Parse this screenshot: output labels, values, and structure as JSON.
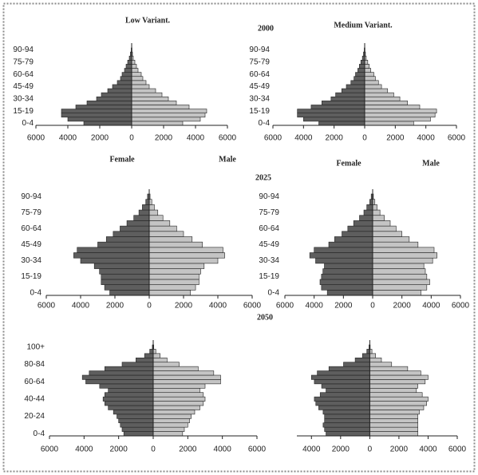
{
  "chart_data": [
    {
      "type": "pyramid",
      "title": "Low Variant.",
      "categories": [
        "0-4",
        null,
        null,
        "15-19",
        null,
        null,
        "30-34",
        null,
        null,
        "45-49",
        null,
        null,
        "60-64",
        null,
        null,
        "75-79",
        null,
        null,
        "90-94"
      ],
      "series": [
        {
          "name": "Female",
          "color": "#5e5e5e",
          "values": [
            -3000,
            -4000,
            -4400,
            -4400,
            -3500,
            -2800,
            -2200,
            -1900,
            -1500,
            -1200,
            -900,
            -700,
            -600,
            -450,
            -350,
            -250,
            -150,
            -80,
            -30
          ]
        },
        {
          "name": "Male",
          "color": "#c4c4c4",
          "values": [
            3200,
            4300,
            4600,
            4700,
            3600,
            2800,
            2300,
            1900,
            1500,
            1100,
            900,
            700,
            600,
            400,
            300,
            200,
            100,
            50,
            20
          ]
        }
      ],
      "xlim": [
        -6000,
        6000
      ],
      "xticks": [
        {
          "value": -6000,
          "label": "6000"
        },
        {
          "value": -4000,
          "label": "4000"
        },
        {
          "value": -2000,
          "label": "2000"
        },
        0,
        2000,
        4000,
        6000
      ]
    },
    {
      "type": "pyramid",
      "title": "Medium Variant.",
      "annotation": "2000",
      "categories": [
        "0-4",
        null,
        null,
        "15-19",
        null,
        null,
        "30-34",
        null,
        null,
        "45-49",
        null,
        null,
        "60-64",
        null,
        null,
        "75-79",
        null,
        null,
        "90-94"
      ],
      "series": [
        {
          "name": "Female",
          "color": "#5e5e5e",
          "values": [
            -3000,
            -4000,
            -4400,
            -4400,
            -3500,
            -2800,
            -2200,
            -1900,
            -1500,
            -1200,
            -900,
            -700,
            -600,
            -450,
            -350,
            -250,
            -150,
            -80,
            -30
          ]
        },
        {
          "name": "Male",
          "color": "#c4c4c4",
          "values": [
            3200,
            4300,
            4600,
            4700,
            3600,
            2800,
            2300,
            1900,
            1500,
            1100,
            900,
            700,
            600,
            400,
            300,
            200,
            100,
            50,
            20
          ]
        }
      ],
      "xlim": [
        -6000,
        6000
      ],
      "xticks": [
        {
          "value": -6000,
          "label": "6000"
        },
        {
          "value": -4000,
          "label": "4000"
        },
        {
          "value": -2000,
          "label": "2000"
        },
        0,
        2000,
        4000,
        6000
      ]
    },
    {
      "type": "pyramid",
      "categories": [
        "0-4",
        null,
        null,
        "15-19",
        null,
        null,
        "30-34",
        null,
        null,
        "45-49",
        null,
        null,
        "60-64",
        null,
        null,
        "75-79",
        null,
        null,
        "90-94"
      ],
      "series": [
        {
          "color": "#5e5e5e",
          "values": [
            -2300,
            -2600,
            -2800,
            -2800,
            -2900,
            -3200,
            -4000,
            -4400,
            -4200,
            -3000,
            -2500,
            -2100,
            -1700,
            -1300,
            -900,
            -600,
            -400,
            -200,
            -100
          ]
        },
        {
          "color": "#c4c4c4",
          "values": [
            2400,
            2700,
            2900,
            2900,
            3000,
            3200,
            4000,
            4400,
            4300,
            3100,
            2500,
            2000,
            1600,
            1200,
            800,
            500,
            300,
            150,
            50
          ]
        }
      ],
      "xlim": [
        -6000,
        6000
      ],
      "xticks": [
        {
          "value": -6000,
          "label": "6000"
        },
        {
          "value": -4000,
          "label": "4000"
        },
        {
          "value": -2000,
          "label": "2000"
        },
        0,
        2000,
        4000,
        6000
      ]
    },
    {
      "type": "pyramid",
      "annotation": "2025",
      "categories": [
        "0-4",
        null,
        null,
        "15-19",
        null,
        null,
        "30-34",
        null,
        null,
        "45-49",
        null,
        null,
        "60-64",
        null,
        null,
        "75-79",
        null,
        null,
        "90-94"
      ],
      "series": [
        {
          "color": "#5e5e5e",
          "values": [
            -3100,
            -3500,
            -3600,
            -3500,
            -3400,
            -3300,
            -3900,
            -4300,
            -4000,
            -3000,
            -2600,
            -2100,
            -1700,
            -1300,
            -900,
            -600,
            -400,
            -200,
            -100
          ]
        },
        {
          "color": "#c4c4c4",
          "values": [
            3300,
            3700,
            3900,
            3700,
            3600,
            3500,
            4100,
            4400,
            4200,
            3100,
            2500,
            2000,
            1600,
            1200,
            800,
            500,
            300,
            150,
            50
          ]
        }
      ],
      "xlim": [
        -6000,
        6000
      ],
      "xticks": [
        {
          "value": -6000,
          "label": "6000"
        },
        {
          "value": -4000,
          "label": "4000"
        },
        {
          "value": -2000,
          "label": "2000"
        },
        0,
        2000,
        4000,
        6000
      ]
    },
    {
      "type": "pyramid",
      "categories": [
        "0-4",
        null,
        null,
        null,
        "20-24",
        null,
        null,
        null,
        "40-44",
        null,
        null,
        null,
        "60-64",
        null,
        null,
        null,
        "80-84",
        null,
        null,
        null,
        "100+"
      ],
      "series": [
        {
          "color": "#5e5e5e",
          "values": [
            -1700,
            -1800,
            -1900,
            -2000,
            -2100,
            -2300,
            -2600,
            -2800,
            -2900,
            -2800,
            -2600,
            -3100,
            -3900,
            -4100,
            -3700,
            -2800,
            -1800,
            -1000,
            -500,
            -200,
            -50
          ]
        },
        {
          "color": "#c4c4c4",
          "values": [
            1700,
            1800,
            2000,
            2100,
            2200,
            2400,
            2700,
            2900,
            3000,
            2900,
            2700,
            3000,
            3900,
            3900,
            3500,
            2600,
            1500,
            800,
            400,
            150,
            30
          ]
        }
      ],
      "xlim": [
        -6000,
        6000
      ],
      "xticks": [
        {
          "value": -6000,
          "label": "6000"
        },
        {
          "value": -4000,
          "label": "4000"
        },
        {
          "value": -2000,
          "label": "2000"
        },
        0,
        2000,
        4000,
        6000
      ]
    },
    {
      "type": "pyramid",
      "annotation": "2050",
      "categories": [
        null,
        null,
        null,
        null,
        null,
        null,
        null,
        null,
        null,
        null,
        null,
        null,
        null,
        null,
        null,
        null,
        null,
        null,
        null,
        null,
        null
      ],
      "series": [
        {
          "color": "#5e5e5e",
          "values": [
            -3000,
            -3100,
            -3200,
            -3100,
            -3100,
            -3200,
            -3500,
            -3700,
            -3800,
            -3400,
            -3000,
            -3300,
            -3800,
            -4000,
            -3600,
            -2800,
            -1800,
            -1000,
            -500,
            -200,
            -50
          ]
        },
        {
          "color": "#c4c4c4",
          "values": [
            3300,
            3300,
            3300,
            3300,
            3300,
            3400,
            3700,
            3900,
            4000,
            3600,
            3200,
            3300,
            3800,
            4000,
            3500,
            2600,
            1500,
            800,
            400,
            150,
            30
          ]
        }
      ],
      "xlim": [
        -5000,
        6000
      ],
      "xticks": [
        {
          "value": -4000,
          "label": "4000"
        },
        {
          "value": -2000,
          "label": "2000"
        },
        0,
        2000,
        4000,
        6000
      ]
    }
  ]
}
